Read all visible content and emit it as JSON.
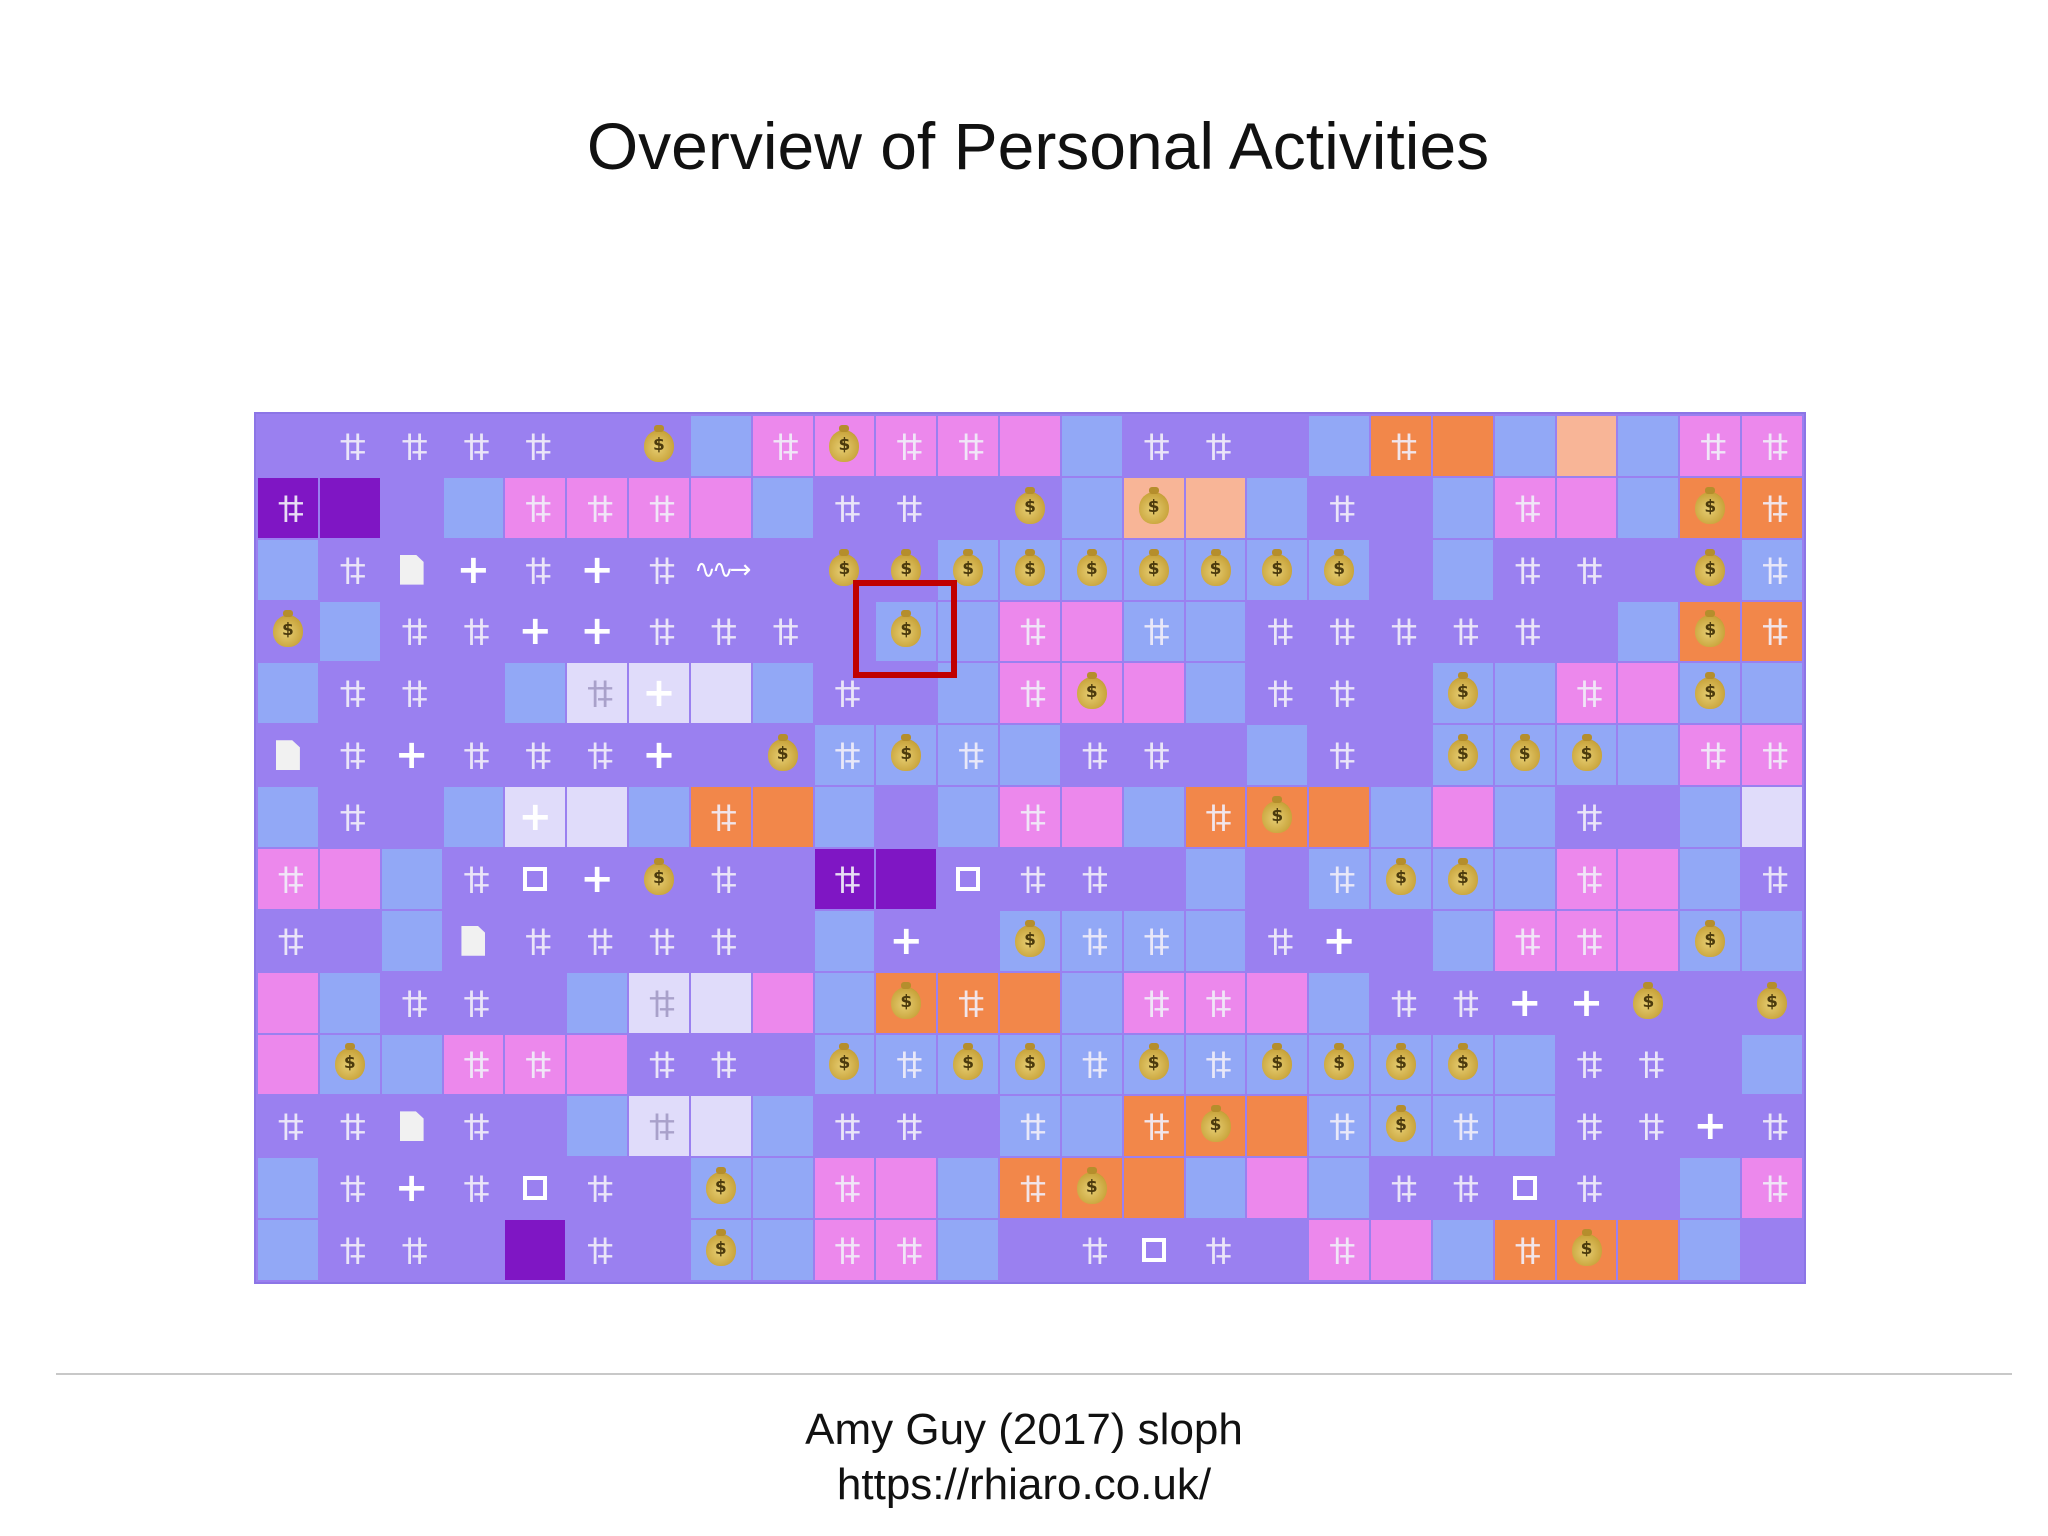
{
  "slide": {
    "title": "Overview of Personal Activities",
    "credit_author": "Amy Guy (2017) sloph",
    "credit_url": "https://rhiaro.co.uk/"
  },
  "colors": {
    "grid_background": "#9a80f0",
    "blue": "#92a8f6",
    "pink": "#ec88ec",
    "orange": "#f2874a",
    "salmon": "#f8b597",
    "dark_purple": "#7f16c4",
    "white_tile": "#e0dcfa",
    "highlight": "#c00000"
  },
  "legend_codes": {
    "tile_colors": {
      "e": "grid-background",
      "b": "blue",
      "p": "pink",
      "o": "orange",
      "s": "salmon",
      "d": "dark-purple",
      "w": "white",
      "l": "lavender"
    },
    "icons": {
      "F": "fork-and-knife-icon",
      "M": "money-bag-icon",
      "P": "plus-icon",
      "S": "square-icon",
      "D": "document-icon",
      "W": "wave-arrow-icon"
    }
  },
  "grid": {
    "columns": 25,
    "rows": [
      [
        "e",
        "eF",
        "eF",
        "eF",
        "eF",
        "e",
        "eM",
        "b",
        "pF",
        "pM",
        "pF",
        "pF",
        "p",
        "b",
        "eF",
        "eF",
        "e",
        "b",
        "oF",
        "o",
        "b",
        "s",
        "b",
        "pF",
        "pF"
      ],
      [
        "dF",
        "d",
        "e",
        "b",
        "pF",
        "pF",
        "pF",
        "p",
        "b",
        "eF",
        "eF",
        "e",
        "eM",
        "b",
        "sM",
        "s",
        "b",
        "eF",
        "e",
        "b",
        "pF",
        "p",
        "b",
        "oM",
        "oF"
      ],
      [
        "b",
        "eF",
        "eD",
        "eP",
        "eF",
        "eP",
        "eF",
        "eW",
        "e",
        "eM",
        "eM",
        "bM",
        "bM",
        "bM",
        "bM",
        "bM",
        "bM",
        "bM",
        "e",
        "b",
        "eF",
        "eF",
        "e",
        "eM",
        "bF"
      ],
      [
        "eM",
        "b",
        "eF",
        "eF",
        "eP",
        "eP",
        "eF",
        "eF",
        "eF",
        "e",
        "bM",
        "b",
        "pF",
        "p",
        "bF",
        "b",
        "eF",
        "eF",
        "eF",
        "eF",
        "eF",
        "e",
        "b",
        "oM",
        "oF"
      ],
      [
        "b",
        "eF",
        "eF",
        "e",
        "b",
        "wF",
        "wP",
        "w",
        "b",
        "eF",
        "e",
        "b",
        "pF",
        "pM",
        "p",
        "b",
        "eF",
        "eF",
        "e",
        "bM",
        "b",
        "pF",
        "p",
        "bM",
        "b"
      ],
      [
        "eD",
        "eF",
        "eP",
        "eF",
        "eF",
        "eF",
        "eP",
        "e",
        "eM",
        "bF",
        "bM",
        "bF",
        "b",
        "eF",
        "eF",
        "e",
        "b",
        "eF",
        "e",
        "bM",
        "bM",
        "bM",
        "b",
        "pF",
        "pF"
      ],
      [
        "b",
        "eF",
        "e",
        "b",
        "wP",
        "w",
        "b",
        "oF",
        "o",
        "b",
        "e",
        "b",
        "pF",
        "p",
        "b",
        "oF",
        "oM",
        "o",
        "b",
        "p",
        "b",
        "eF",
        "e",
        "b",
        "w"
      ],
      [
        "pF",
        "p",
        "b",
        "eF",
        "eS",
        "eP",
        "eM",
        "eF",
        "e",
        "dF",
        "d",
        "eS",
        "eF",
        "eF",
        "e",
        "b",
        "e",
        "bF",
        "bM",
        "bM",
        "b",
        "pF",
        "p",
        "b",
        "eF"
      ],
      [
        "eF",
        "e",
        "b",
        "eD",
        "eF",
        "eF",
        "eF",
        "eF",
        "e",
        "b",
        "eP",
        "e",
        "bM",
        "bF",
        "bF",
        "b",
        "eF",
        "eP",
        "e",
        "b",
        "pF",
        "pF",
        "p",
        "bM",
        "b"
      ],
      [
        "p",
        "b",
        "eF",
        "eF",
        "e",
        "b",
        "wF",
        "w",
        "p",
        "b",
        "oM",
        "oF",
        "o",
        "b",
        "pF",
        "pF",
        "p",
        "b",
        "eF",
        "eF",
        "eP",
        "eP",
        "eM",
        "e",
        "eM"
      ],
      [
        "p",
        "bM",
        "b",
        "pF",
        "pF",
        "p",
        "eF",
        "eF",
        "e",
        "bM",
        "bF",
        "bM",
        "bM",
        "bF",
        "bM",
        "bF",
        "bM",
        "bM",
        "bM",
        "bM",
        "b",
        "eF",
        "eF",
        "e",
        "b"
      ],
      [
        "eF",
        "eF",
        "eD",
        "eF",
        "e",
        "b",
        "wF",
        "w",
        "b",
        "eF",
        "eF",
        "e",
        "bF",
        "b",
        "oF",
        "oM",
        "o",
        "bF",
        "bM",
        "bF",
        "b",
        "eF",
        "eF",
        "eP",
        "eF"
      ],
      [
        "b",
        "eF",
        "eP",
        "eF",
        "eS",
        "eF",
        "e",
        "bM",
        "b",
        "pF",
        "p",
        "b",
        "oF",
        "oM",
        "o",
        "b",
        "p",
        "b",
        "eF",
        "eF",
        "eS",
        "eF",
        "e",
        "b",
        "pF"
      ],
      [
        "b",
        "eF",
        "eF",
        "e",
        "d",
        "eF",
        "e",
        "bM",
        "b",
        "pF",
        "pF",
        "b",
        "e",
        "eF",
        "eS",
        "eF",
        "e",
        "pF",
        "p",
        "b",
        "oF",
        "oM",
        "o",
        "b",
        "e"
      ]
    ]
  }
}
